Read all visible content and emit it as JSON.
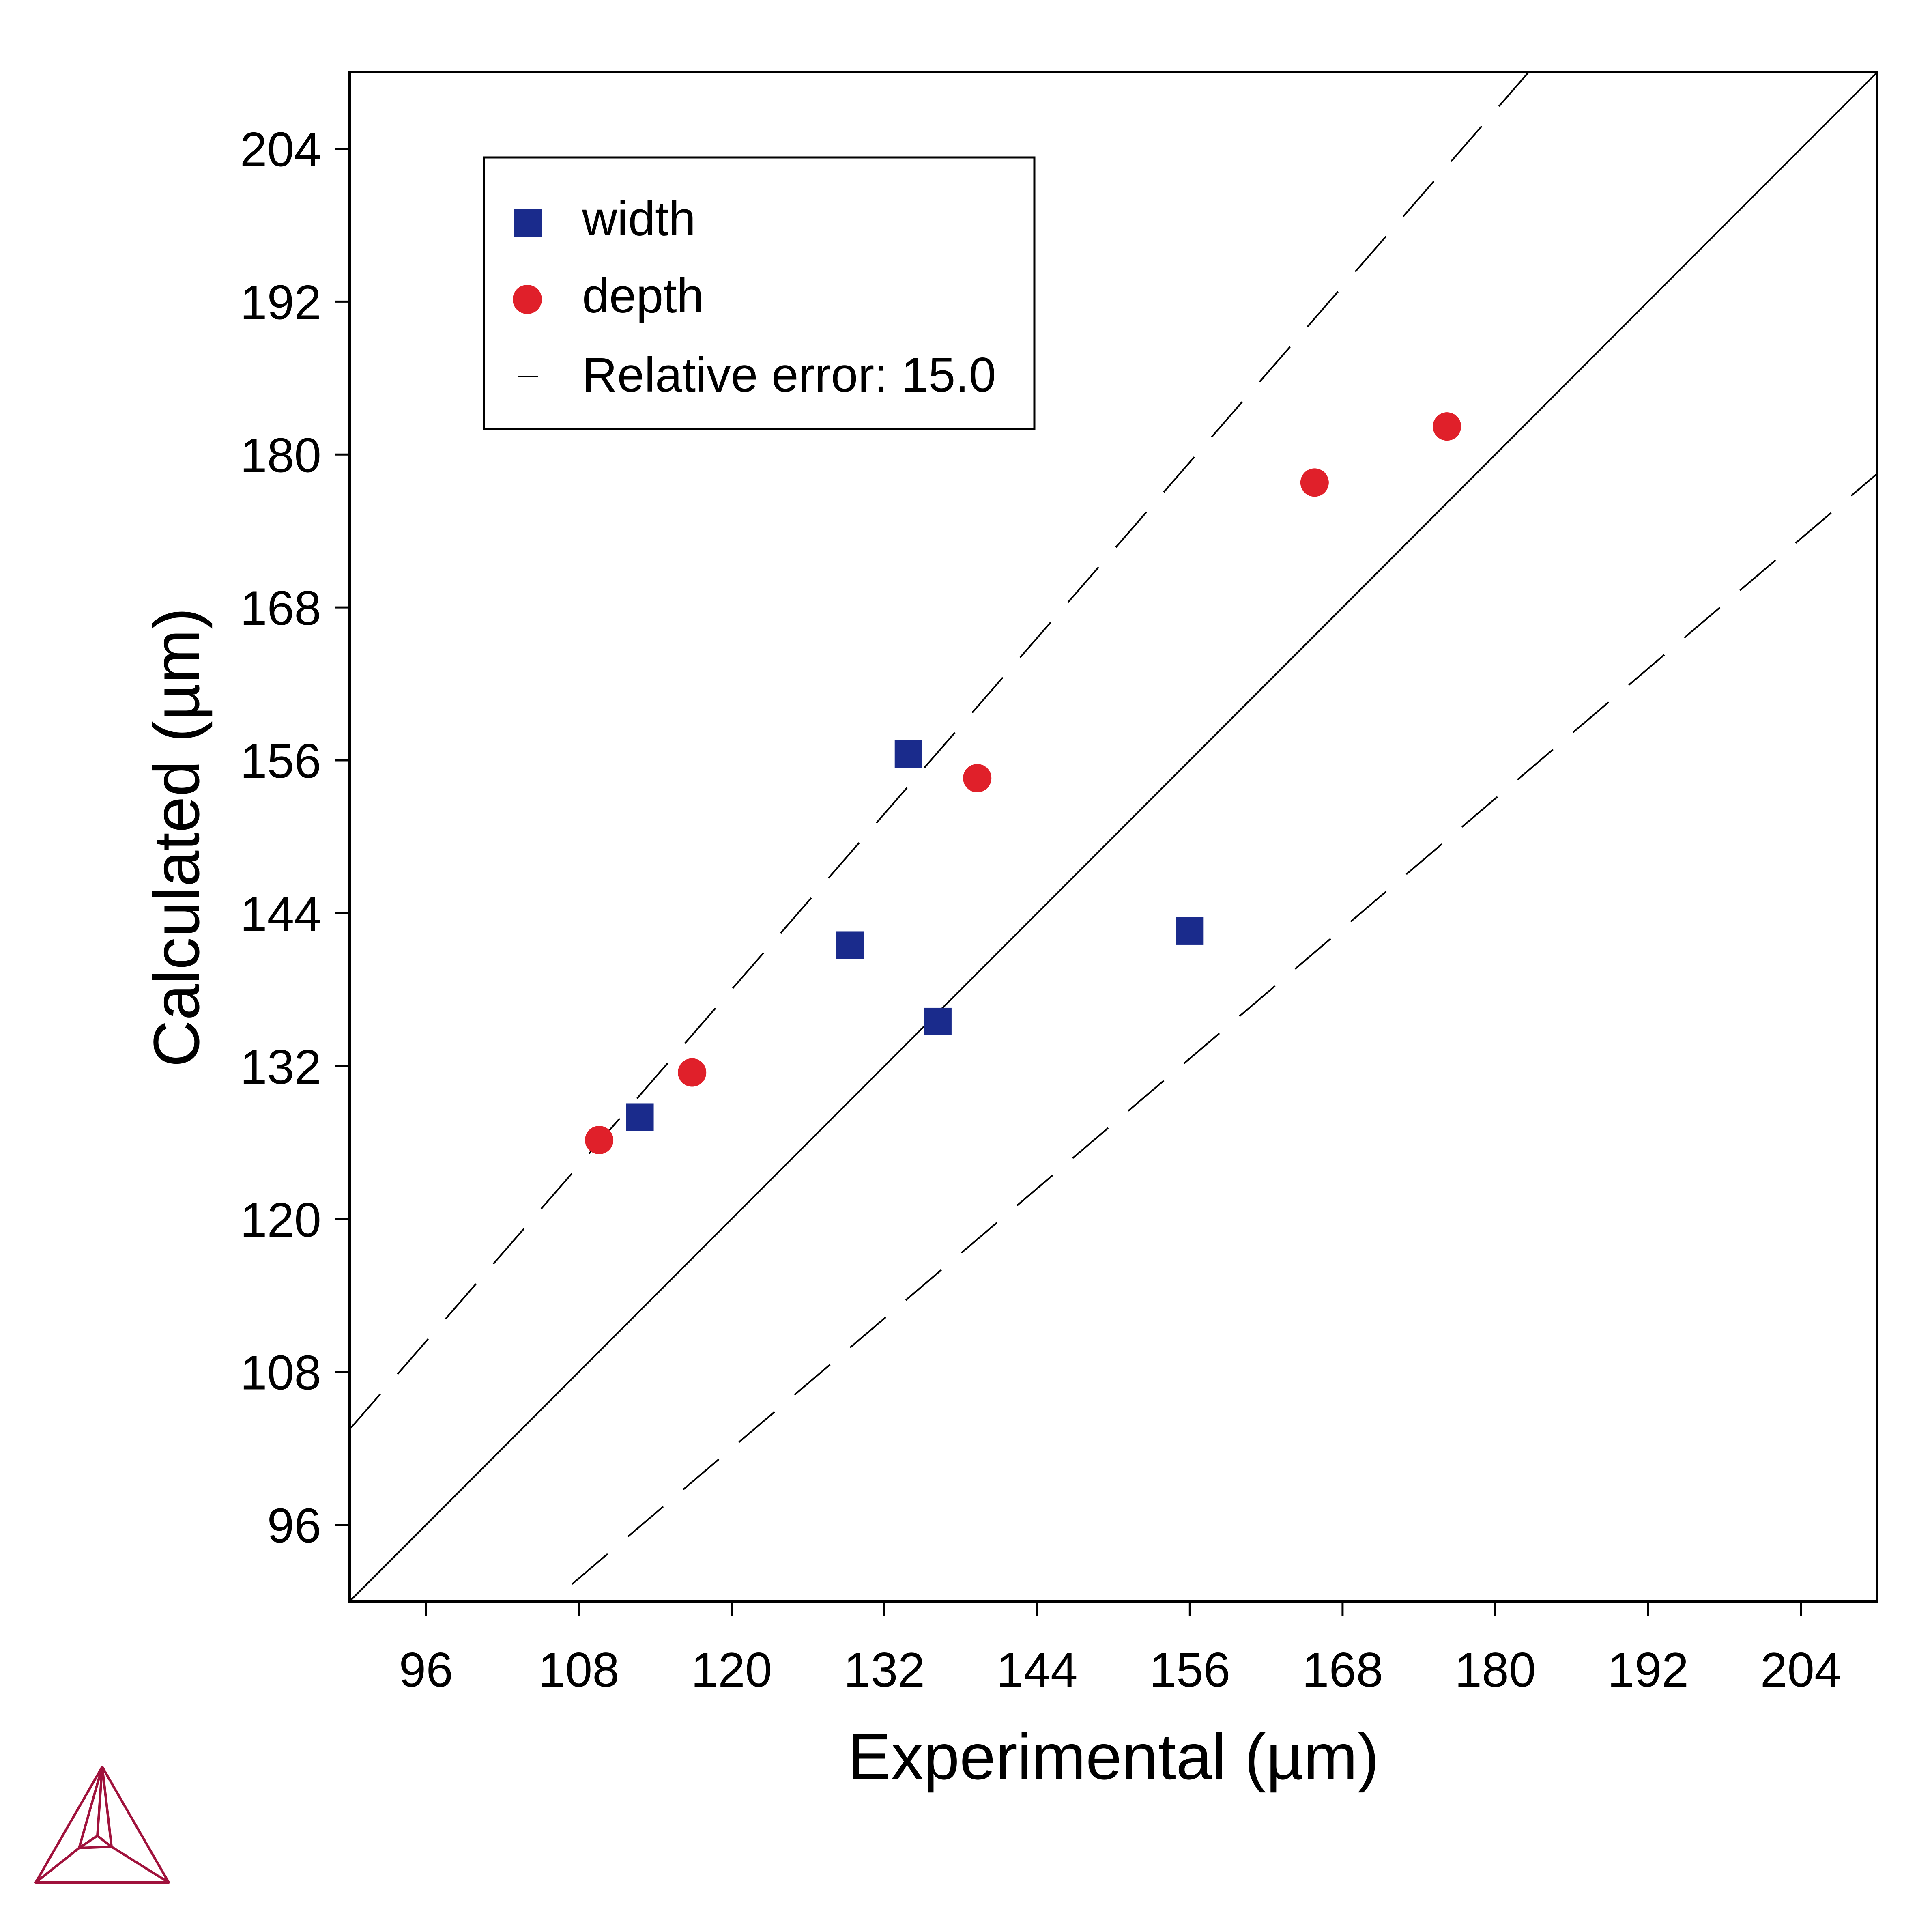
{
  "chart_data": {
    "type": "scatter",
    "title": "",
    "xlabel": "Experimental (µm)",
    "ylabel": "Calculated (µm)",
    "xlim": [
      90,
      210
    ],
    "ylim": [
      90,
      210
    ],
    "x_ticks": [
      96,
      108,
      120,
      132,
      144,
      156,
      168,
      180,
      192,
      204
    ],
    "y_ticks": [
      96,
      108,
      120,
      132,
      144,
      156,
      168,
      180,
      192,
      204
    ],
    "x_tick_labels": [
      "96",
      "108",
      "120",
      "132",
      "144",
      "156",
      "168",
      "180",
      "192",
      "204"
    ],
    "y_tick_labels": [
      "96",
      "108",
      "120",
      "132",
      "144",
      "156",
      "168",
      "180",
      "192",
      "204"
    ],
    "grid": false,
    "legend_position": "top-left",
    "relative_error_percent": 15.0,
    "series": [
      {
        "name": "width",
        "marker": "square",
        "color": "#1a2b8c",
        "points": [
          {
            "x": 112.8,
            "y": 128.0
          },
          {
            "x": 129.3,
            "y": 141.5
          },
          {
            "x": 133.9,
            "y": 156.5
          },
          {
            "x": 136.2,
            "y": 135.5
          },
          {
            "x": 156.0,
            "y": 142.6
          }
        ]
      },
      {
        "name": "depth",
        "marker": "circle",
        "color": "#e0202a",
        "points": [
          {
            "x": 109.6,
            "y": 126.2
          },
          {
            "x": 116.9,
            "y": 131.5
          },
          {
            "x": 139.3,
            "y": 154.6
          },
          {
            "x": 165.8,
            "y": 177.8
          },
          {
            "x": 176.2,
            "y": 182.2
          }
        ]
      }
    ],
    "reference_lines": [
      {
        "name": "Relative error: 15.0",
        "style": "dashed",
        "factors": [
          1.15,
          0.85
        ]
      },
      {
        "name": "",
        "style": "solid",
        "factors": [
          1.0
        ]
      }
    ]
  },
  "legend": {
    "items": [
      {
        "label": "width",
        "marker": "square",
        "color": "#1a2b8c"
      },
      {
        "label": "depth",
        "marker": "circle",
        "color": "#e0202a"
      },
      {
        "label": "Relative error: 15.0",
        "marker": "dash",
        "color": "#000000"
      }
    ]
  },
  "logo": {
    "icon": "triangle-logo-icon",
    "color": "#a0123c"
  }
}
